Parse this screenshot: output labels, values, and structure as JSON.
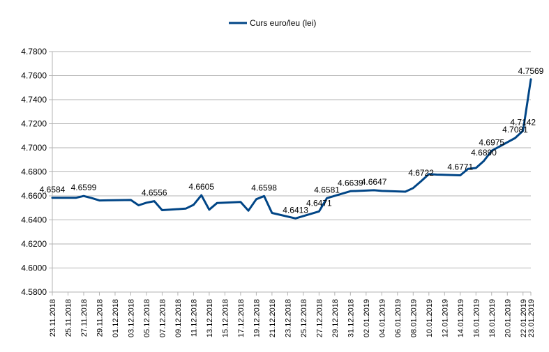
{
  "chart_data": {
    "type": "line",
    "title": "",
    "xlabel": "",
    "ylabel": "",
    "ylim": [
      4.58,
      4.78
    ],
    "grid": "horizontal",
    "legend": "top-center",
    "y_ticks": [
      "4.5800",
      "4.6000",
      "4.6200",
      "4.6400",
      "4.6600",
      "4.6800",
      "4.7000",
      "4.7200",
      "4.7400",
      "4.7600",
      "4.7800"
    ],
    "x_ticks": [
      "23.11.2018",
      "25.11.2018",
      "27.11.2018",
      "29.11.2018",
      "01.12.2018",
      "03.12.2018",
      "05.12.2018",
      "07.12.2018",
      "09.12.2018",
      "11.12.2018",
      "13.12.2018",
      "15.12.2018",
      "17.12.2018",
      "19.12.2018",
      "21.12.2018",
      "23.12.2018",
      "25.12.2018",
      "27.12.2018",
      "29.12.2018",
      "31.12.2018",
      "02.01.2019",
      "04.01.2019",
      "06.01.2019",
      "08.01.2019",
      "10.01.2019",
      "12.01.2019",
      "14.01.2019",
      "16.01.2019",
      "18.01.2019",
      "20.01.2019",
      "22.01.2019",
      "23.01.2019"
    ],
    "series": [
      {
        "name": "Curs euro/leu (lei)",
        "color": "#004586",
        "x": [
          "2018-11-23",
          "2018-11-26",
          "2018-11-27",
          "2018-11-28",
          "2018-11-29",
          "2018-11-30",
          "2018-12-03",
          "2018-12-04",
          "2018-12-05",
          "2018-12-06",
          "2018-12-07",
          "2018-12-10",
          "2018-12-11",
          "2018-12-12",
          "2018-12-13",
          "2018-12-14",
          "2018-12-17",
          "2018-12-18",
          "2018-12-19",
          "2018-12-20",
          "2018-12-21",
          "2018-12-24",
          "2018-12-27",
          "2018-12-28",
          "2018-12-31",
          "2019-01-03",
          "2019-01-04",
          "2019-01-07",
          "2019-01-08",
          "2019-01-09",
          "2019-01-10",
          "2019-01-11",
          "2019-01-14",
          "2019-01-15",
          "2019-01-16",
          "2019-01-17",
          "2019-01-18",
          "2019-01-21",
          "2019-01-22",
          "2019-01-23"
        ],
        "values": [
          4.6584,
          4.6584,
          4.6599,
          4.6582,
          4.6562,
          4.6563,
          4.6566,
          4.6522,
          4.6543,
          4.6556,
          4.6481,
          4.6494,
          4.6525,
          4.6605,
          4.6485,
          4.6541,
          4.6549,
          4.6477,
          4.6572,
          4.6598,
          4.6458,
          4.6413,
          4.6471,
          4.6581,
          4.6639,
          4.6647,
          4.6641,
          4.6635,
          4.6665,
          4.6722,
          4.6781,
          4.6777,
          4.6771,
          4.6825,
          4.6832,
          4.689,
          4.6975,
          4.7081,
          4.7142,
          4.7569
        ]
      }
    ],
    "data_labels": [
      {
        "x": "2018-11-23",
        "text": "4.6584"
      },
      {
        "x": "2018-11-27",
        "text": "4.6599"
      },
      {
        "x": "2018-12-06",
        "text": "4.6556"
      },
      {
        "x": "2018-12-12",
        "text": "4.6605"
      },
      {
        "x": "2018-12-20",
        "text": "4.6598"
      },
      {
        "x": "2018-12-24",
        "text": "4.6413"
      },
      {
        "x": "2018-12-27",
        "text": "4.6471"
      },
      {
        "x": "2018-12-28",
        "text": "4.6581"
      },
      {
        "x": "2018-12-31",
        "text": "4.6639"
      },
      {
        "x": "2019-01-03",
        "text": "4.6647"
      },
      {
        "x": "2019-01-09",
        "text": "4.6722"
      },
      {
        "x": "2019-01-14",
        "text": "4.6771"
      },
      {
        "x": "2019-01-17",
        "text": "4.6890"
      },
      {
        "x": "2019-01-18",
        "text": "4.6975"
      },
      {
        "x": "2019-01-21",
        "text": "4.7081"
      },
      {
        "x": "2019-01-22",
        "text": "4.7142"
      },
      {
        "x": "2019-01-23",
        "text": "4.7569"
      }
    ]
  }
}
